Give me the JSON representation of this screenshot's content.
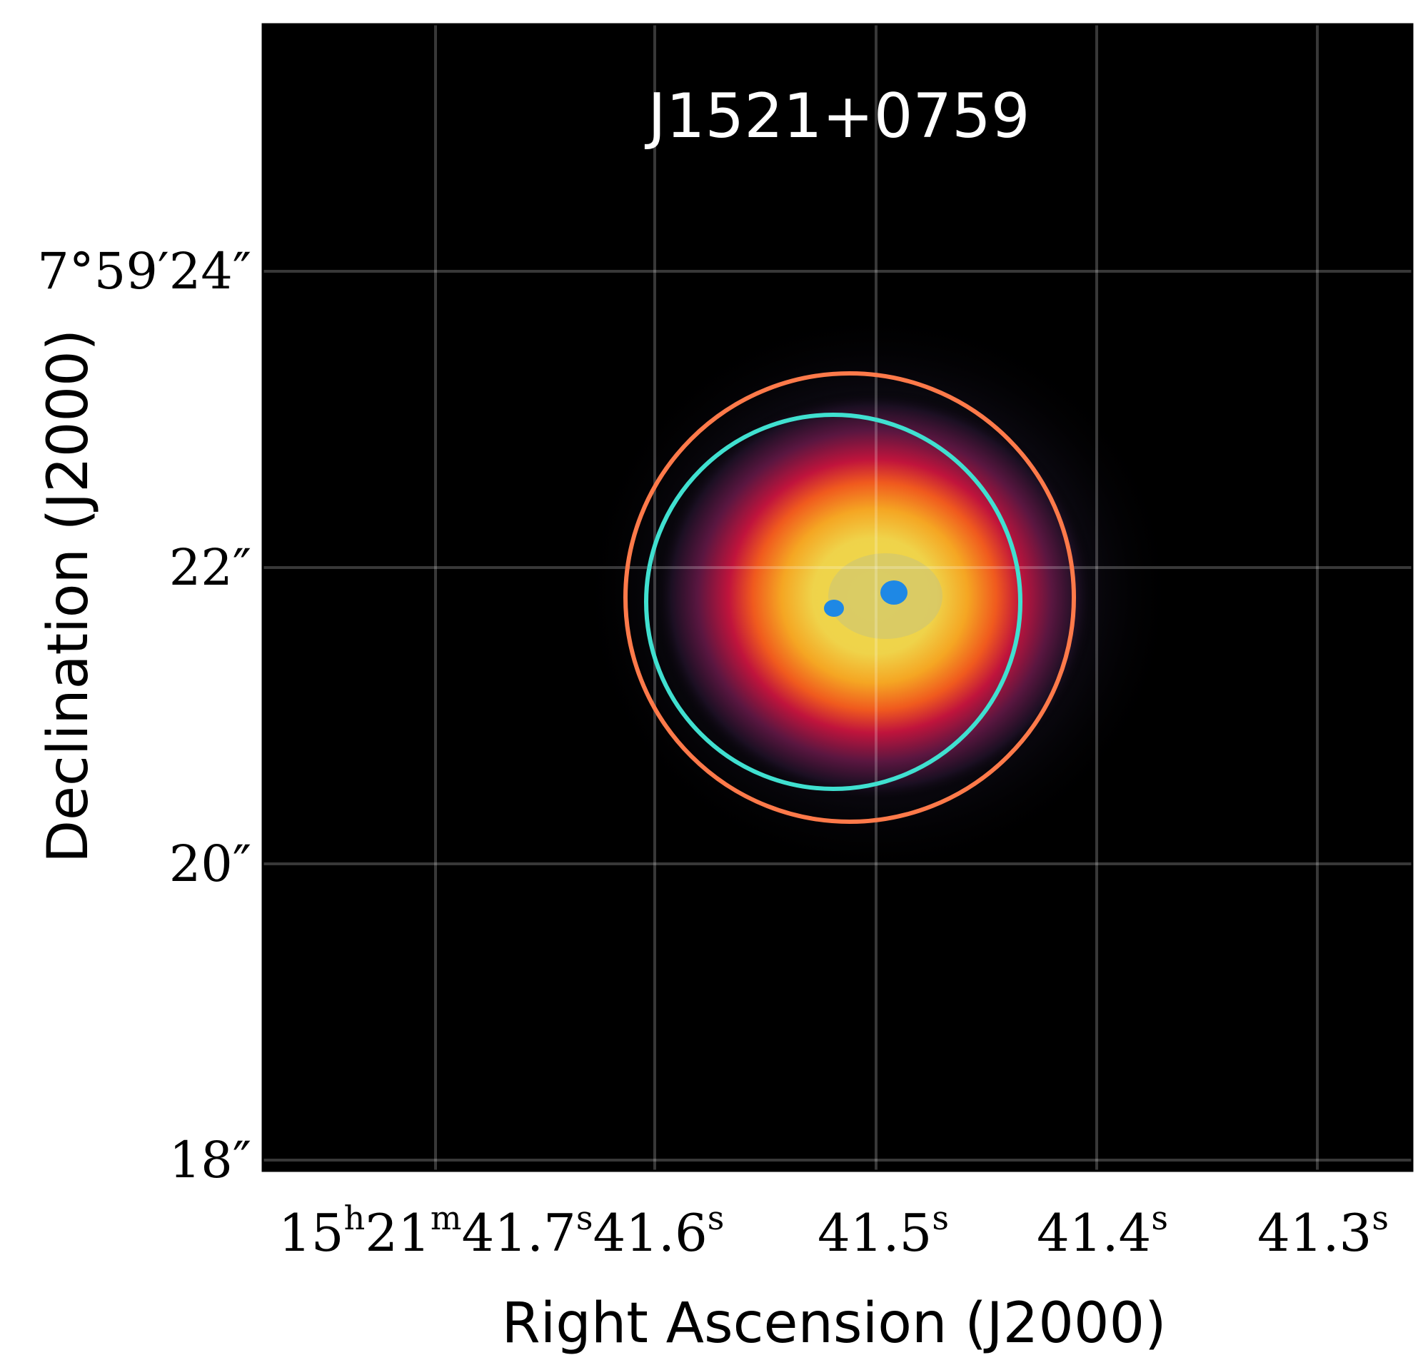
{
  "title": "J1521+0759",
  "axes": {
    "xlabel": "Right Ascension (J2000)",
    "ylabel": "Declination (J2000)",
    "x_ticks": [
      {
        "main": "15",
        "sup": "h"
      },
      {
        "main": "21",
        "sup": "m"
      },
      {
        "main": "41.7",
        "sup": "s"
      },
      {
        "main": "41.6",
        "sup": "s"
      },
      {
        "main": "41.5",
        "sup": "s"
      },
      {
        "main": "41.4",
        "sup": "s"
      },
      {
        "main": "41.3",
        "sup": "s"
      }
    ],
    "y_ticks": [
      "7°59′24″",
      "22″",
      "20″",
      "18″"
    ],
    "grid": true
  },
  "image": {
    "background_color": "#000000",
    "colormap": [
      "#0b0a18",
      "#5a1640",
      "#c0143c",
      "#f05a1e",
      "#f5a623",
      "#efd94a",
      "#8aa7a0",
      "#1e88e5"
    ]
  },
  "regions": [
    {
      "shape": "circle",
      "color": "#ff7a4a"
    },
    {
      "shape": "circle",
      "color": "#40e0d0"
    }
  ]
}
